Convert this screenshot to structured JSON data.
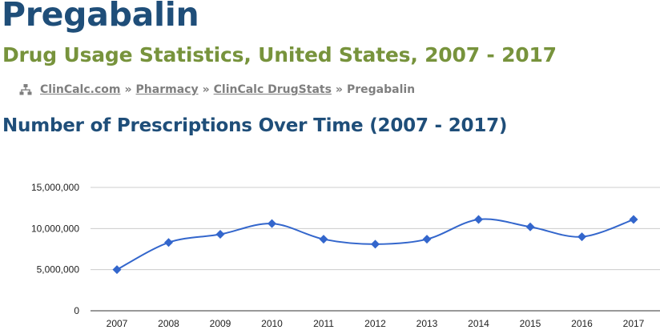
{
  "page": {
    "drug_name": "Pregabalin",
    "subtitle": "Drug Usage Statistics, United States, 2007 - 2017",
    "breadcrumb": {
      "items": [
        "ClinCalc.com",
        "Pharmacy",
        "ClinCalc DrugStats"
      ],
      "separator": "»",
      "current": "Pregabalin"
    },
    "section_heading": "Number of Prescriptions Over Time (2007 - 2017)"
  },
  "icons": {
    "breadcrumb_icon": "sitemap-icon"
  },
  "colors": {
    "title": "#1f4e79",
    "subtitle": "#77933c",
    "breadcrumb": "#7f7f7f",
    "series": "#3366cc",
    "grid": "#cccccc"
  },
  "chart_data": {
    "type": "line",
    "x": [
      "2007",
      "2008",
      "2009",
      "2010",
      "2011",
      "2012",
      "2013",
      "2014",
      "2015",
      "2016",
      "2017"
    ],
    "series": [
      {
        "values": [
          5000000,
          8300000,
          9300000,
          10600000,
          8700000,
          8100000,
          8700000,
          11100000,
          10200000,
          9000000,
          11100000
        ]
      }
    ],
    "ylim": [
      0,
      15000000
    ],
    "yticks": [
      "0",
      "5,000,000",
      "10,000,000",
      "15,000,000"
    ],
    "ytick_values": [
      0,
      5000000,
      10000000,
      15000000
    ],
    "grid": true,
    "smooth": true,
    "markers": "diamond",
    "legend": "none",
    "title": "",
    "xlabel": "",
    "ylabel": ""
  }
}
